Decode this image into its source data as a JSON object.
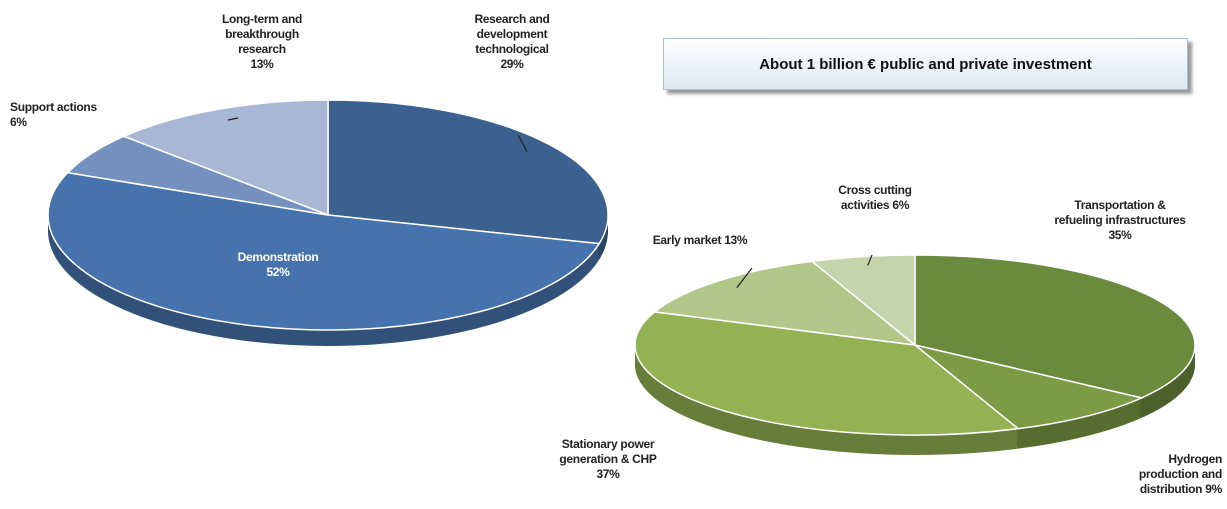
{
  "header": {
    "text": "About 1 billion € public and private investment"
  },
  "chart_data": [
    {
      "type": "pie",
      "categories": [
        "Research and development technological",
        "Demonstration",
        "Support actions",
        "Long-term and breakthrough research"
      ],
      "values": [
        29,
        52,
        6,
        13
      ],
      "value_labels": [
        "29%",
        "52%",
        "6%",
        "13%"
      ],
      "colors": [
        "#3c6190",
        "#4673ad",
        "#7591c0",
        "#a8b7d5"
      ]
    },
    {
      "type": "pie",
      "categories": [
        "Transportation & refueling infrastructures",
        "Hydrogen production and distribution",
        "Stationary power generation & CHP",
        "Early market",
        "Cross cutting activities"
      ],
      "values": [
        35,
        9,
        37,
        13,
        6
      ],
      "value_labels": [
        "35%",
        "9%",
        "37%",
        "13%",
        "6%"
      ],
      "colors": [
        "#6a8a3d",
        "#7b9c45",
        "#93b253",
        "#b2c68a",
        "#c6d4ac"
      ]
    }
  ]
}
